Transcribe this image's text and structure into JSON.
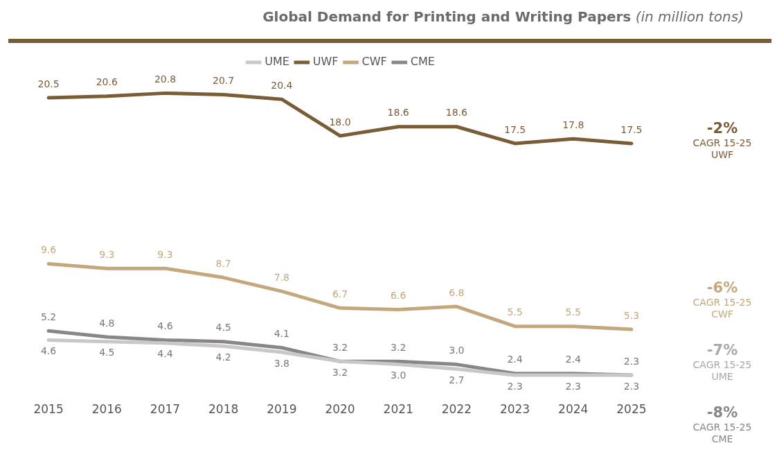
{
  "chart_data": {
    "type": "line",
    "title": "Global Demand for Printing and Writing Papers",
    "subtitle": "(in million tons)",
    "categories": [
      "2015",
      "2016",
      "2017",
      "2018",
      "2019",
      "2020",
      "2021",
      "2022",
      "2023",
      "2024",
      "2025"
    ],
    "series": [
      {
        "name": "UME",
        "color": "#c8c8c8",
        "values": [
          4.6,
          4.5,
          4.4,
          4.2,
          3.8,
          3.2,
          3.0,
          2.7,
          2.3,
          2.3,
          2.3
        ],
        "value_labels": [
          "4.6",
          "4.5",
          "4.4",
          "4.2",
          "3.8",
          "3.2",
          "3.0",
          "2.7",
          "2.3",
          "2.3",
          "2.3"
        ]
      },
      {
        "name": "UWF",
        "color": "#7a5c36",
        "values": [
          20.5,
          20.6,
          20.8,
          20.7,
          20.4,
          18.0,
          18.6,
          18.6,
          17.5,
          17.8,
          17.5
        ],
        "value_labels": [
          "20.5",
          "20.6",
          "20.8",
          "20.7",
          "20.4",
          "18.0",
          "18.6",
          "18.6",
          "17.5",
          "17.8",
          "17.5"
        ]
      },
      {
        "name": "CWF",
        "color": "#c4a77d",
        "values": [
          9.6,
          9.3,
          9.3,
          8.7,
          7.8,
          6.7,
          6.6,
          6.8,
          5.5,
          5.5,
          5.3
        ],
        "value_labels": [
          "9.6",
          "9.3",
          "9.3",
          "8.7",
          "7.8",
          "6.7",
          "6.6",
          "6.8",
          "5.5",
          "5.5",
          "5.3"
        ]
      },
      {
        "name": "CME",
        "color": "#8a8589",
        "values": [
          5.2,
          4.8,
          4.6,
          4.5,
          4.1,
          3.2,
          3.2,
          3.0,
          2.4,
          2.4,
          2.3
        ],
        "value_labels": [
          "5.2",
          "4.8",
          "4.6",
          "4.5",
          "4.1",
          "3.2",
          "3.2",
          "3.0",
          "2.4",
          "2.4",
          "2.3"
        ]
      }
    ],
    "legend": "top",
    "grid": false,
    "marker": "none",
    "line_style": "solid",
    "annotations": [
      "-2%\nCAGR 15-25\nUWF",
      "-6%\nCAGR 15-25\nCWF",
      "-7%\nCAGR 15-25\nUME",
      "-8%\nCAGR 15-25\nCME"
    ]
  }
}
